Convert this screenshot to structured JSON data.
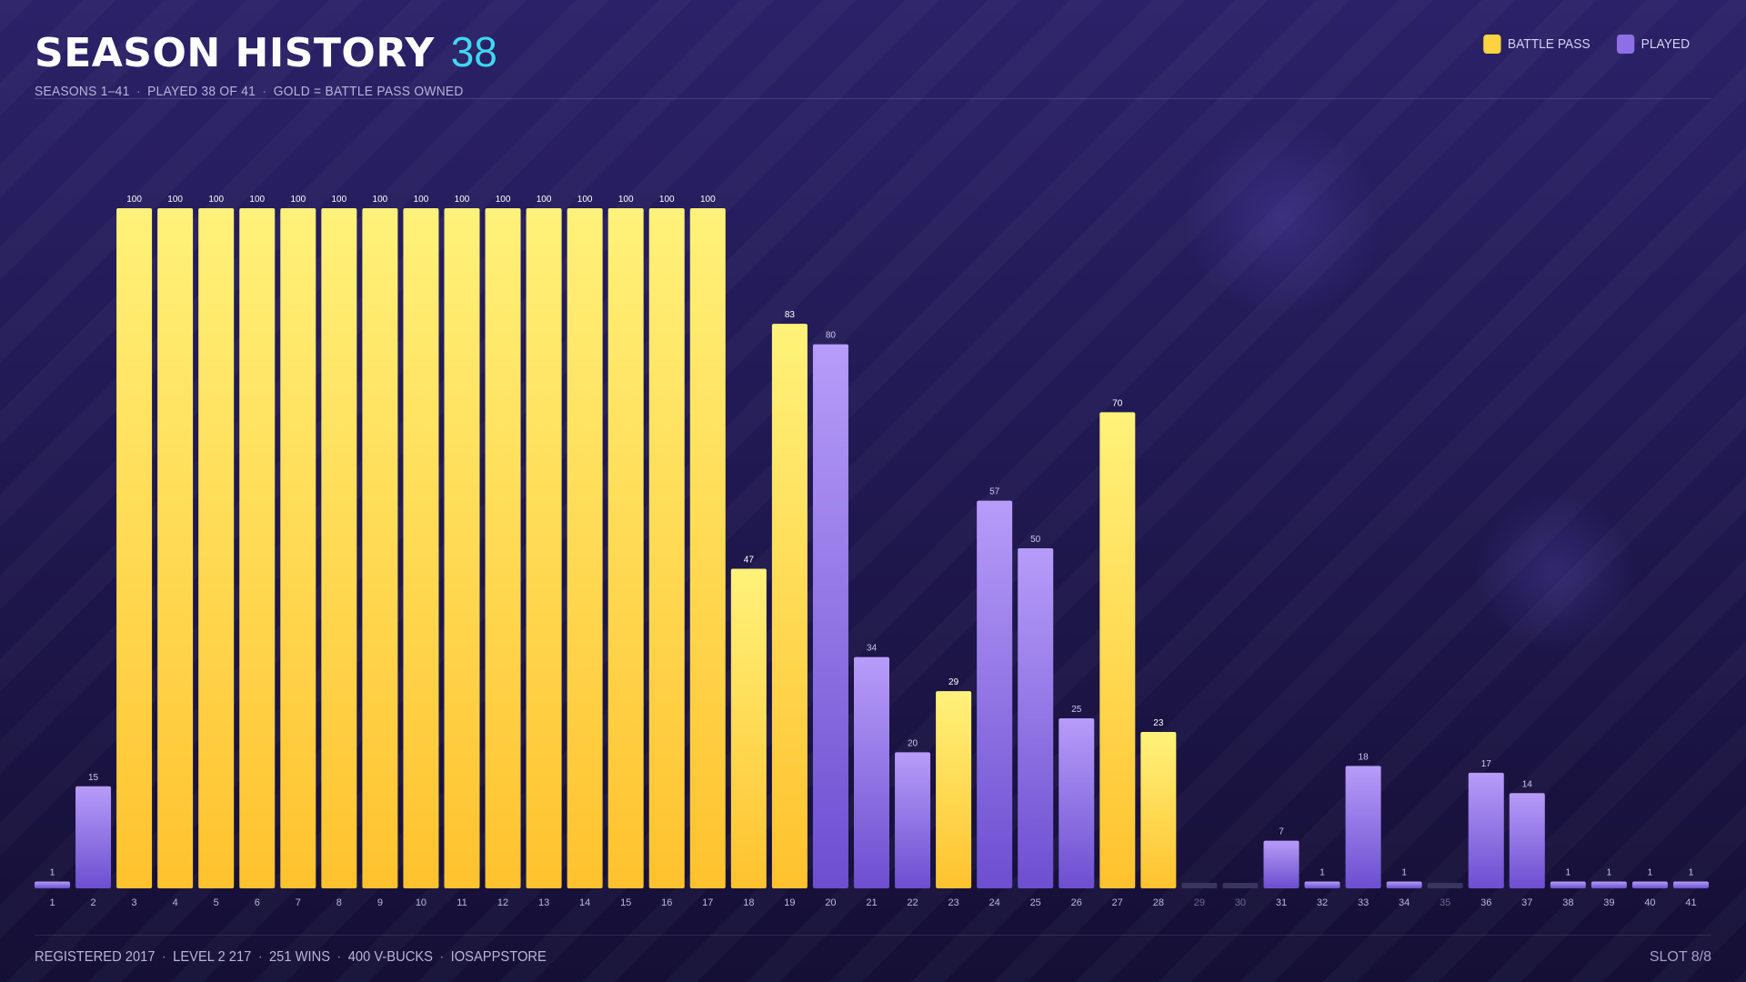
{
  "header": {
    "title": "SEASON HISTORY",
    "count": "38",
    "subtitle_parts": [
      "SEASONS 1–41",
      "PLAYED 38 OF 41",
      "GOLD = BATTLE PASS OWNED"
    ]
  },
  "legend": [
    {
      "label": "BATTLE PASS",
      "color": "#ffd23f"
    },
    {
      "label": "PLAYED",
      "color": "#8f6fe6"
    }
  ],
  "footer": {
    "parts": [
      "REGISTERED 2017",
      "LEVEL 2 217",
      "251 WINS",
      "400 V-BUCKS",
      "IOSAPPSTORE"
    ],
    "slot": "SLOT 8/8"
  },
  "chart_data": {
    "type": "bar",
    "categories": [
      "1",
      "2",
      "3",
      "4",
      "5",
      "6",
      "7",
      "8",
      "9",
      "10",
      "11",
      "12",
      "13",
      "14",
      "15",
      "16",
      "17",
      "18",
      "19",
      "20",
      "21",
      "22",
      "23",
      "24",
      "25",
      "26",
      "27",
      "28",
      "29",
      "30",
      "31",
      "32",
      "33",
      "34",
      "35",
      "36",
      "37",
      "38",
      "39",
      "40",
      "41"
    ],
    "values": [
      1,
      15,
      100,
      100,
      100,
      100,
      100,
      100,
      100,
      100,
      100,
      100,
      100,
      100,
      100,
      100,
      100,
      47,
      83,
      80,
      34,
      20,
      29,
      57,
      50,
      25,
      70,
      23,
      null,
      null,
      7,
      1,
      18,
      1,
      null,
      17,
      14,
      1,
      1,
      1,
      1
    ],
    "battle_pass": [
      false,
      false,
      true,
      true,
      true,
      true,
      true,
      true,
      true,
      true,
      true,
      true,
      true,
      true,
      true,
      true,
      true,
      true,
      true,
      false,
      false,
      false,
      true,
      false,
      false,
      false,
      true,
      true,
      false,
      false,
      false,
      false,
      false,
      false,
      false,
      false,
      false,
      false,
      false,
      false,
      false
    ],
    "ylim": [
      0,
      100
    ],
    "grid": false,
    "colors": {
      "battle_pass_top": "#fff27a",
      "battle_pass_bottom": "#ffc22e",
      "played_top": "#b79cf9",
      "played_bottom": "#6b4fd0",
      "not_played": "#3a3560"
    }
  }
}
